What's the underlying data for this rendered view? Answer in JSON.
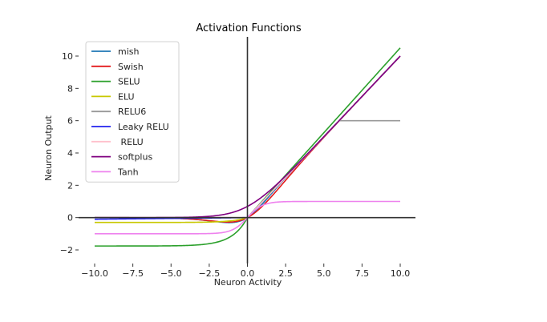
{
  "chart_data": {
    "type": "line",
    "title": "Activation Functions",
    "xlabel": "Neuron Activity",
    "ylabel": "Neuron Output",
    "xlim": [
      -10,
      10
    ],
    "ylim": [
      -2,
      10
    ],
    "xticks": [
      -10,
      -7.5,
      -5,
      -2.5,
      0,
      2.5,
      5,
      7.5,
      10
    ],
    "xtick_labels": [
      "−10.0",
      "−7.5",
      "−5.0",
      "−2.5",
      "0.0",
      "2.5",
      "5.0",
      "7.5",
      "10.0"
    ],
    "yticks": [
      -2,
      0,
      2,
      4,
      6,
      8,
      10
    ],
    "ytick_labels": [
      "−2",
      "0",
      "2",
      "4",
      "6",
      "8",
      "10"
    ],
    "grid": false,
    "legend_position": "top-left",
    "series": [
      {
        "name": "mish",
        "function": "mish",
        "color": "#1f77b4"
      },
      {
        "name": "Swish",
        "function": "swish",
        "color": "#e31a1c"
      },
      {
        "name": "SELU",
        "function": "selu",
        "color": "#2ca02c"
      },
      {
        "name": "ELU",
        "function": "elu",
        "color": "#c8c800"
      },
      {
        "name": "RELU6",
        "function": "relu6",
        "color": "#999999"
      },
      {
        "name": "Leaky RELU",
        "function": "leaky_relu",
        "color": "#2222ee"
      },
      {
        "name": " RELU",
        "function": "relu",
        "color": "#ffc0cb"
      },
      {
        "name": "softplus",
        "function": "softplus",
        "color": "#800080"
      },
      {
        "name": "Tanh",
        "function": "tanh",
        "color": "#ee82ee"
      }
    ]
  }
}
